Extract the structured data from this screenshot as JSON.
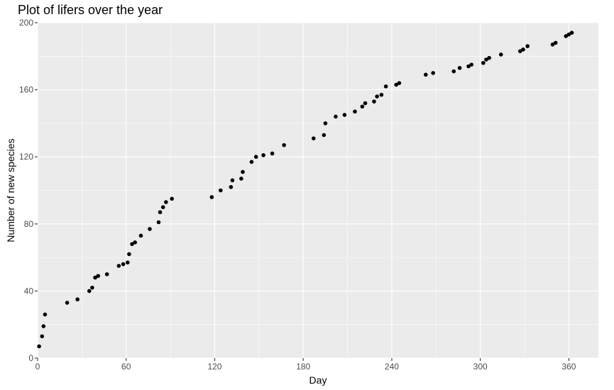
{
  "chart_data": {
    "type": "scatter",
    "title": "Plot of lifers over the year",
    "xlabel": "Day",
    "ylabel": "Number of new species",
    "xlim": [
      0,
      380
    ],
    "ylim": [
      0,
      200
    ],
    "x_ticks": [
      0,
      60,
      120,
      180,
      240,
      300,
      360
    ],
    "y_ticks": [
      0,
      40,
      80,
      120,
      160,
      200
    ],
    "grid": true,
    "panel_background": "#ebebeb",
    "grid_color": "#ffffff",
    "point_color": "#000000",
    "points": [
      {
        "x": 1,
        "y": 7
      },
      {
        "x": 3,
        "y": 13
      },
      {
        "x": 4,
        "y": 19
      },
      {
        "x": 5,
        "y": 26
      },
      {
        "x": 20,
        "y": 33
      },
      {
        "x": 27,
        "y": 35
      },
      {
        "x": 35,
        "y": 40
      },
      {
        "x": 37,
        "y": 42
      },
      {
        "x": 39,
        "y": 48
      },
      {
        "x": 41,
        "y": 49
      },
      {
        "x": 47,
        "y": 50
      },
      {
        "x": 55,
        "y": 55
      },
      {
        "x": 58,
        "y": 56
      },
      {
        "x": 61,
        "y": 57
      },
      {
        "x": 62,
        "y": 62
      },
      {
        "x": 64,
        "y": 68
      },
      {
        "x": 66,
        "y": 69
      },
      {
        "x": 70,
        "y": 73
      },
      {
        "x": 76,
        "y": 77
      },
      {
        "x": 82,
        "y": 81
      },
      {
        "x": 83,
        "y": 87
      },
      {
        "x": 85,
        "y": 90
      },
      {
        "x": 87,
        "y": 93
      },
      {
        "x": 91,
        "y": 95
      },
      {
        "x": 118,
        "y": 96
      },
      {
        "x": 124,
        "y": 100
      },
      {
        "x": 131,
        "y": 102
      },
      {
        "x": 132,
        "y": 106
      },
      {
        "x": 138,
        "y": 107
      },
      {
        "x": 139,
        "y": 111
      },
      {
        "x": 145,
        "y": 117
      },
      {
        "x": 148,
        "y": 120
      },
      {
        "x": 153,
        "y": 121
      },
      {
        "x": 159,
        "y": 122
      },
      {
        "x": 167,
        "y": 127
      },
      {
        "x": 187,
        "y": 131
      },
      {
        "x": 194,
        "y": 133
      },
      {
        "x": 195,
        "y": 140
      },
      {
        "x": 202,
        "y": 144
      },
      {
        "x": 208,
        "y": 145
      },
      {
        "x": 215,
        "y": 147
      },
      {
        "x": 220,
        "y": 150
      },
      {
        "x": 222,
        "y": 152
      },
      {
        "x": 228,
        "y": 153
      },
      {
        "x": 230,
        "y": 156
      },
      {
        "x": 233,
        "y": 157
      },
      {
        "x": 236,
        "y": 162
      },
      {
        "x": 243,
        "y": 163
      },
      {
        "x": 245,
        "y": 164
      },
      {
        "x": 263,
        "y": 169
      },
      {
        "x": 268,
        "y": 170
      },
      {
        "x": 282,
        "y": 171
      },
      {
        "x": 286,
        "y": 173
      },
      {
        "x": 292,
        "y": 174
      },
      {
        "x": 294,
        "y": 175
      },
      {
        "x": 302,
        "y": 176
      },
      {
        "x": 304,
        "y": 178
      },
      {
        "x": 306,
        "y": 179
      },
      {
        "x": 314,
        "y": 181
      },
      {
        "x": 327,
        "y": 183
      },
      {
        "x": 329,
        "y": 184
      },
      {
        "x": 332,
        "y": 186
      },
      {
        "x": 349,
        "y": 187
      },
      {
        "x": 351,
        "y": 188
      },
      {
        "x": 358,
        "y": 192
      },
      {
        "x": 360,
        "y": 193
      },
      {
        "x": 362,
        "y": 194
      }
    ]
  }
}
